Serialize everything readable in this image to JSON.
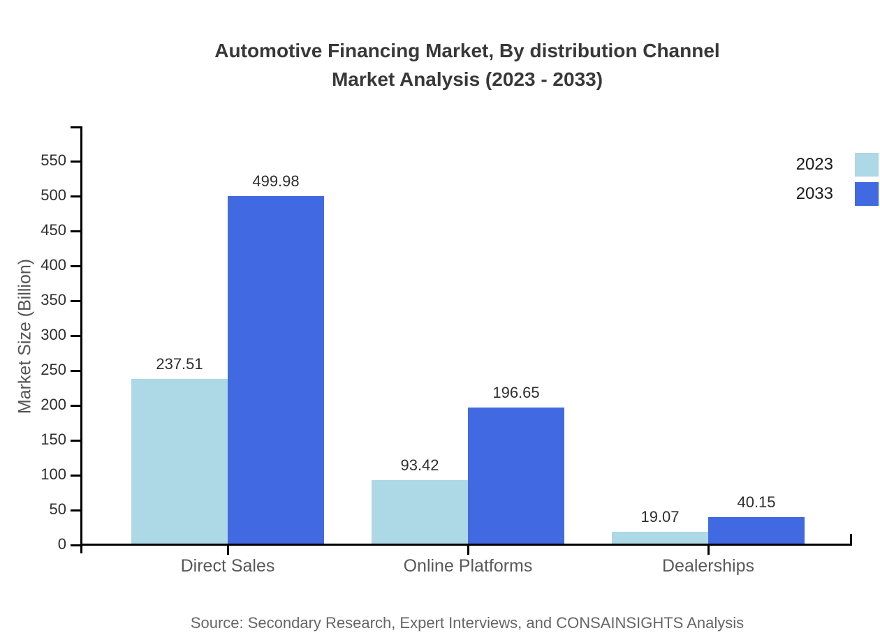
{
  "title": {
    "line1": "Automotive Financing Market, By distribution Channel",
    "line2": "Market Analysis (2023 - 2033)"
  },
  "source": "Source: Secondary Research, Expert Interviews, and CONSAINSIGHTS Analysis",
  "chart_data": {
    "type": "bar",
    "title": "Automotive Financing Market, By distribution Channel Market Analysis (2023 - 2033)",
    "xlabel": "",
    "ylabel": "Market Size (Billion)",
    "categories": [
      "Direct Sales",
      "Online Platforms",
      "Dealerships"
    ],
    "series": [
      {
        "name": "2023",
        "color": "#ADD8E6",
        "values": [
          237.51,
          93.42,
          19.07
        ]
      },
      {
        "name": "2033",
        "color": "#4169E1",
        "values": [
          499.98,
          196.65,
          40.15
        ]
      }
    ],
    "ylim": [
      0,
      600
    ],
    "yticks": [
      0,
      50,
      100,
      150,
      200,
      250,
      300,
      350,
      400,
      450,
      500,
      550
    ],
    "grid": false,
    "legend_position": "top-right",
    "bar_value_labels": true
  },
  "colors": {
    "axis": "#000000",
    "title_text": "#383838",
    "tick_label_text": "#2e2e2e",
    "category_label_text": "#595959",
    "source_text": "#666666"
  }
}
